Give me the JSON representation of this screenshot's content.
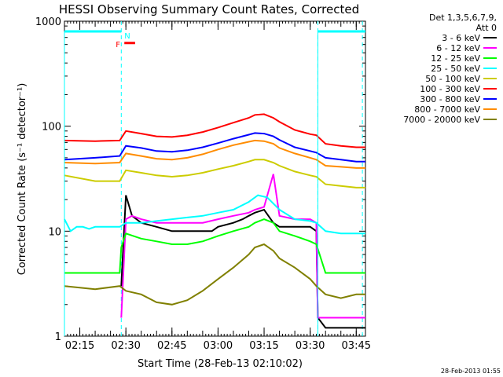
{
  "chart_data": {
    "type": "line",
    "title": "HESSI Observing Summary Count Rates, Corrected",
    "xlabel": "Start Time (28-Feb-13 02:10:02)",
    "ylabel": "Corrected Count Rate (s⁻¹ detector⁻¹)",
    "y_scale": "log",
    "ylim": [
      1,
      1000
    ],
    "xlim_minutes_after_0210": [
      0,
      98
    ],
    "x_tick_labels": [
      "02:15",
      "02:30",
      "02:45",
      "03:00",
      "03:15",
      "03:30",
      "03:45"
    ],
    "x_tick_minutes_after_0210": [
      5,
      20,
      35,
      50,
      65,
      80,
      95
    ],
    "y_tick_labels": [
      "1",
      "10",
      "100",
      "1000"
    ],
    "y_tick_values": [
      1,
      10,
      100,
      1000
    ],
    "legend_header": [
      "Det 1,3,5,6,7,9,",
      "Att 0"
    ],
    "legend_placement": "right",
    "timestamp": "28-Feb-2013 01:55",
    "flags": {
      "night_label": "N",
      "night_color": "#00ffff",
      "flare_label": "F",
      "flare_color": "#ff0000",
      "night_intervals_minutes": [
        [
          0,
          18.5
        ],
        [
          82.5,
          98
        ]
      ],
      "flare_interval_minutes": [
        19.5,
        23.0
      ],
      "night_level": 800,
      "flare_level": 620
    },
    "dashed_lines_minutes": [
      18.5,
      82.5,
      97
    ],
    "series": [
      {
        "name": "3 - 6 keV",
        "color": "#000000",
        "x": [
          0,
          18,
          18.5,
          20,
          22,
          25,
          30,
          35,
          40,
          45,
          48,
          50,
          55,
          58,
          60,
          62,
          65,
          68,
          70,
          75,
          80,
          82,
          82.5,
          85,
          90,
          95,
          98
        ],
        "y": [
          null,
          null,
          3,
          22,
          14,
          12,
          11,
          10,
          10,
          10,
          10,
          11,
          12,
          13,
          14,
          15,
          16,
          12,
          11,
          11,
          11,
          10,
          1.5,
          1.2,
          1.2,
          1.2,
          1.2
        ]
      },
      {
        "name": "6 - 12 keV",
        "color": "#ff00ff",
        "x": [
          0,
          18,
          18.5,
          20,
          22,
          25,
          30,
          35,
          40,
          45,
          50,
          55,
          60,
          62,
          65,
          68,
          70,
          75,
          80,
          82,
          82.5,
          85,
          90,
          95,
          98
        ],
        "y": [
          null,
          null,
          1.5,
          13,
          14,
          13,
          12,
          12,
          12,
          12,
          13,
          14,
          15,
          16,
          17,
          35,
          14,
          13,
          13,
          12,
          1.5,
          1.5,
          1.5,
          1.5,
          1.5
        ]
      },
      {
        "name": "12 - 25 keV",
        "color": "#00ff00",
        "x": [
          0,
          10,
          18,
          18.5,
          20,
          25,
          30,
          35,
          40,
          45,
          50,
          55,
          60,
          62,
          65,
          68,
          70,
          75,
          80,
          82,
          85,
          90,
          95,
          98
        ],
        "y": [
          4,
          4,
          4,
          7,
          9.5,
          8.5,
          8,
          7.5,
          7.5,
          8,
          9,
          10,
          11,
          12,
          13,
          12,
          10,
          9,
          8,
          7.5,
          4,
          4,
          4,
          4
        ]
      },
      {
        "name": "25 - 50 keV",
        "color": "#00ffff",
        "x": [
          0,
          2,
          4,
          6,
          8,
          10,
          18,
          20,
          25,
          30,
          35,
          40,
          45,
          50,
          55,
          60,
          63,
          66,
          70,
          75,
          80,
          82,
          85,
          90,
          95,
          98
        ],
        "y": [
          13,
          10,
          11,
          11,
          10.5,
          11,
          11,
          12,
          12,
          12.5,
          13,
          13.5,
          14,
          15,
          16,
          19,
          22,
          21,
          16,
          13,
          12.5,
          12,
          10,
          9.5,
          9.5,
          9.5
        ]
      },
      {
        "name": "50 - 100 keV",
        "color": "#cccc00",
        "x": [
          0,
          10,
          18,
          20,
          25,
          30,
          35,
          40,
          45,
          50,
          55,
          60,
          62,
          65,
          68,
          70,
          75,
          80,
          82,
          85,
          90,
          95,
          98
        ],
        "y": [
          34,
          30,
          30,
          38,
          36,
          34,
          33,
          34,
          36,
          39,
          42,
          46,
          48,
          48,
          45,
          42,
          37,
          34,
          33,
          28,
          27,
          26,
          26
        ]
      },
      {
        "name": "100 - 300 keV",
        "color": "#ff0000",
        "x": [
          0,
          10,
          18,
          20,
          25,
          30,
          35,
          40,
          45,
          50,
          55,
          60,
          62,
          65,
          68,
          70,
          75,
          80,
          82,
          85,
          90,
          95,
          98
        ],
        "y": [
          73,
          72,
          73,
          90,
          85,
          80,
          79,
          82,
          88,
          97,
          108,
          120,
          128,
          130,
          120,
          110,
          92,
          84,
          82,
          68,
          65,
          63,
          63
        ]
      },
      {
        "name": "300 - 800 keV",
        "color": "#0000ff",
        "x": [
          0,
          10,
          18,
          20,
          25,
          30,
          35,
          40,
          45,
          50,
          55,
          60,
          62,
          65,
          68,
          70,
          75,
          80,
          82,
          85,
          90,
          95,
          98
        ],
        "y": [
          48,
          50,
          52,
          65,
          62,
          58,
          57,
          59,
          63,
          69,
          76,
          83,
          86,
          85,
          80,
          74,
          63,
          58,
          56,
          50,
          48,
          46,
          46
        ]
      },
      {
        "name": "800 - 7000 keV",
        "color": "#ff8c00",
        "x": [
          0,
          10,
          18,
          20,
          25,
          30,
          35,
          40,
          45,
          50,
          55,
          60,
          62,
          65,
          68,
          70,
          75,
          80,
          82,
          85,
          90,
          95,
          98
        ],
        "y": [
          45,
          44,
          45,
          55,
          52,
          49,
          48,
          50,
          54,
          60,
          66,
          71,
          73,
          72,
          68,
          62,
          55,
          50,
          48,
          42,
          41,
          40,
          40
        ]
      },
      {
        "name": "7000 - 20000 keV",
        "color": "#808000",
        "x": [
          0,
          10,
          18,
          20,
          25,
          30,
          35,
          40,
          45,
          50,
          55,
          60,
          62,
          65,
          68,
          70,
          75,
          80,
          82,
          85,
          90,
          95,
          98
        ],
        "y": [
          3,
          2.8,
          3,
          2.7,
          2.5,
          2.1,
          2,
          2.2,
          2.7,
          3.5,
          4.5,
          6,
          7,
          7.5,
          6.5,
          5.5,
          4.5,
          3.5,
          3,
          2.5,
          2.3,
          2.5,
          2.5
        ]
      }
    ]
  }
}
